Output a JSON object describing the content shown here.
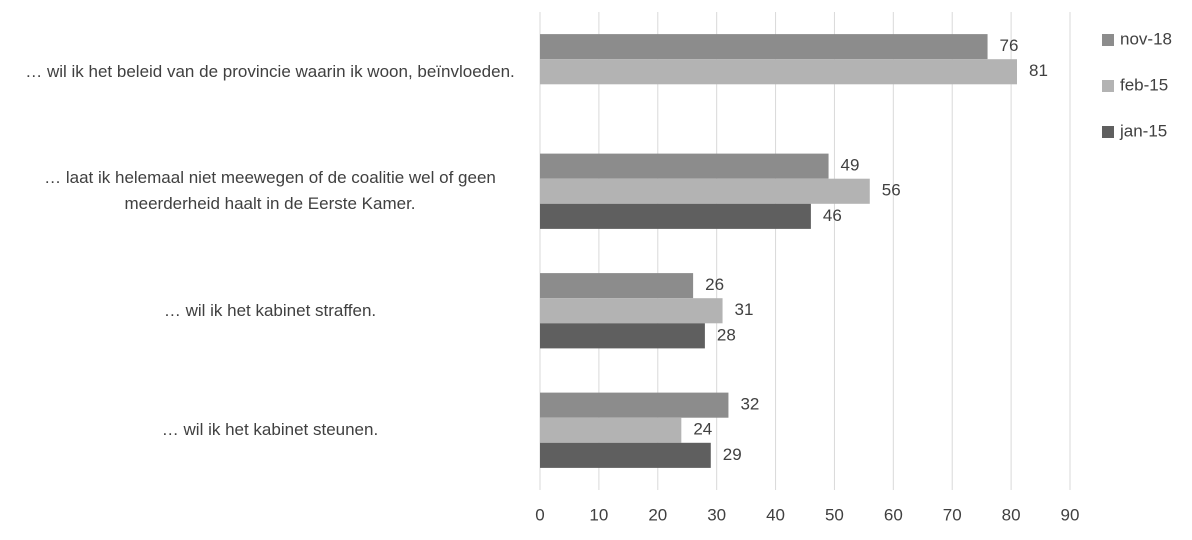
{
  "chart_data": {
    "type": "bar",
    "orientation": "horizontal",
    "categories": [
      "… wil ik het beleid van de provincie waarin ik woon, beïnvloeden.",
      "… laat ik helemaal niet meewegen of de coalitie wel of geen meerderheid haalt in de Eerste Kamer.",
      "… wil ik het kabinet straffen.",
      "… wil ik het kabinet steunen."
    ],
    "series": [
      {
        "name": "nov-18",
        "color": "#8c8c8c",
        "values": [
          76,
          49,
          26,
          32
        ]
      },
      {
        "name": "feb-15",
        "color": "#b3b3b3",
        "values": [
          81,
          56,
          31,
          24
        ]
      },
      {
        "name": "jan-15",
        "color": "#5f5f5f",
        "values": [
          null,
          46,
          28,
          29
        ]
      }
    ],
    "xlim": [
      0,
      90
    ],
    "xticks": [
      0,
      10,
      20,
      30,
      40,
      50,
      60,
      70,
      80,
      90
    ],
    "grid": true,
    "legend": "top-right"
  }
}
